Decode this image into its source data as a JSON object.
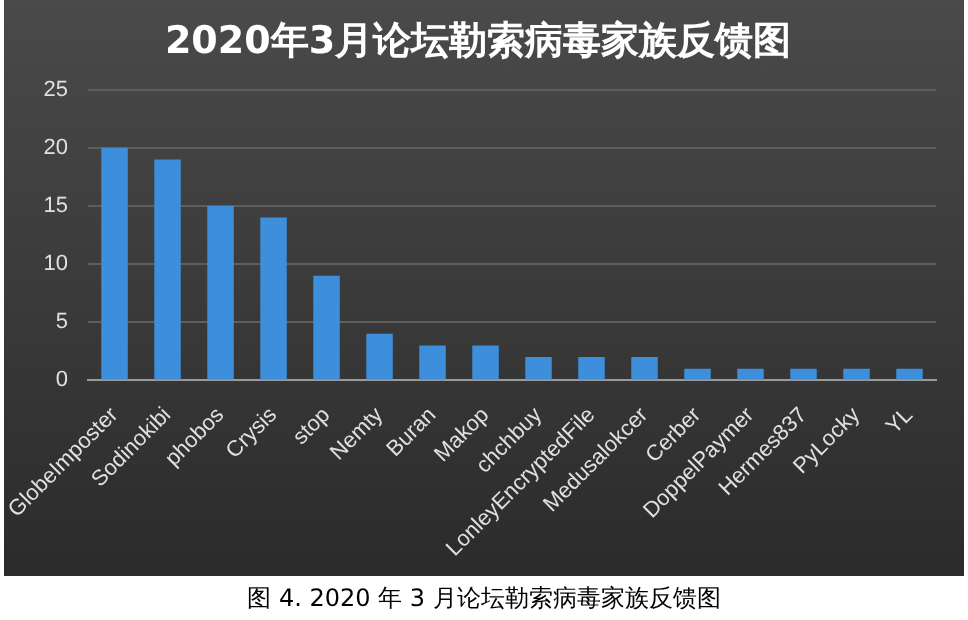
{
  "chart_data": {
    "type": "bar",
    "title": "2020年3月论坛勒索病毒家族反馈图",
    "categories": [
      "GlobeImposter",
      "Sodinokibi",
      "phobos",
      "Crysis",
      "stop",
      "Nemty",
      "Buran",
      "Makop",
      "chchbuy",
      "LonleyEncryptedFile",
      "Medusalokcer",
      "Cerber",
      "DoppelPaymer",
      "Hermes837",
      "PyLocky",
      "YL"
    ],
    "values": [
      20,
      19,
      15,
      14,
      9,
      4,
      3,
      3,
      2,
      2,
      2,
      1,
      1,
      1,
      1,
      1
    ],
    "color": "#3d8fdc",
    "ylim": [
      0,
      25
    ],
    "yticks": [
      0,
      5,
      10,
      15,
      20,
      25
    ],
    "grid": "y",
    "annotations": [
      "图 4.  2020 年 3 月论坛勒索病毒家族反馈图"
    ]
  }
}
